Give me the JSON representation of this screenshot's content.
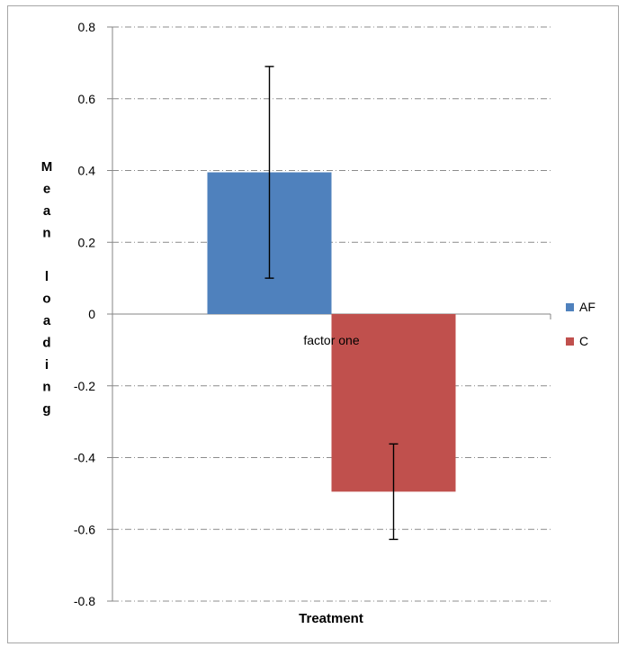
{
  "chart_data": {
    "type": "bar",
    "title": "",
    "categories": [
      "factor one"
    ],
    "series": [
      {
        "name": "AF",
        "values": [
          0.395
        ],
        "error": [
          0.295
        ],
        "color": "#4f81bd"
      },
      {
        "name": "C",
        "values": [
          -0.495
        ],
        "error": [
          0.133
        ],
        "color": "#c0504d"
      }
    ],
    "xlabel": "Treatment",
    "ylabel": "Mean loading",
    "ylim": [
      -0.8,
      0.8
    ],
    "yticks": [
      "0.8",
      "0.6",
      "0.4",
      "0.2",
      "0",
      "-0.2",
      "-0.4",
      "-0.6",
      "-0.8"
    ],
    "ytick_values": [
      0.8,
      0.6,
      0.4,
      0.2,
      0,
      -0.2,
      -0.4,
      -0.6,
      -0.8
    ],
    "grid": true,
    "legend_position": "right"
  }
}
